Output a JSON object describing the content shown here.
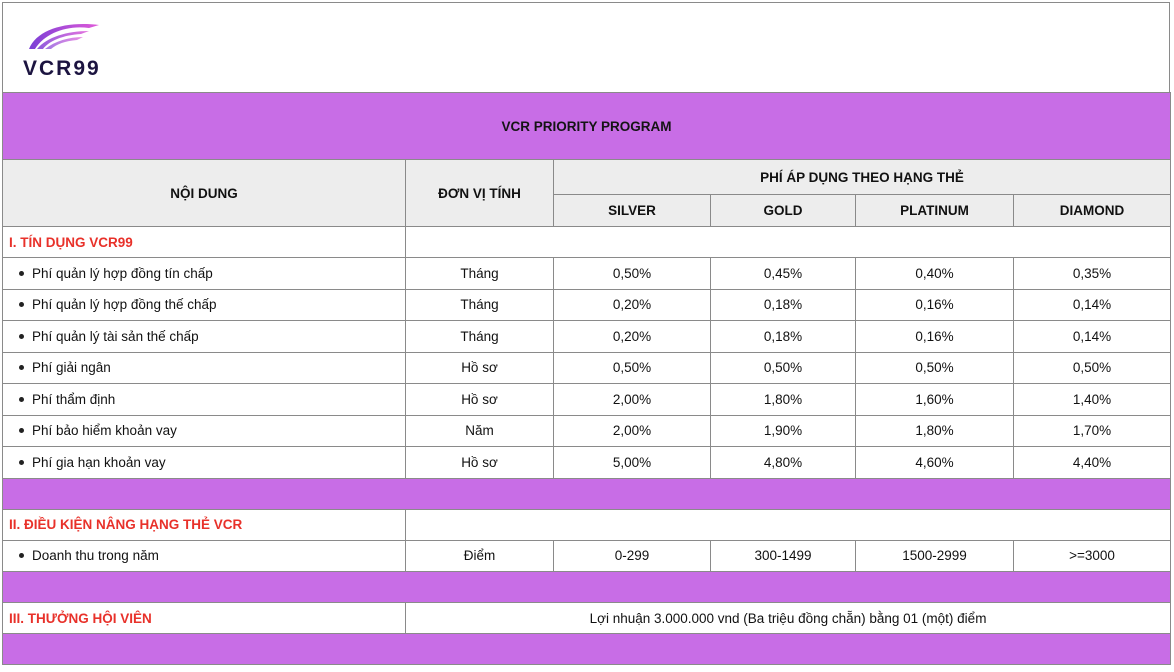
{
  "brand": {
    "name": "VCR99",
    "accent_color": "#c86de6",
    "logo_icon": "swoosh-logo-icon"
  },
  "program_title": "VCR PRIORITY PROGRAM",
  "header": {
    "content": "NỘI DUNG",
    "unit": "ĐƠN VỊ TÍNH",
    "fee_group": "PHÍ ÁP DỤNG THEO HẠNG THẺ",
    "tiers": [
      "SILVER",
      "GOLD",
      "PLATINUM",
      "DIAMOND"
    ]
  },
  "sections": {
    "credit": {
      "title": "I. TÍN DỤNG VCR99",
      "rows": [
        {
          "label": "Phí quản lý hợp đồng tín chấp",
          "unit": "Tháng",
          "values": [
            "0,50%",
            "0,45%",
            "0,40%",
            "0,35%"
          ]
        },
        {
          "label": "Phí quản lý hợp đồng thế chấp",
          "unit": "Tháng",
          "values": [
            "0,20%",
            "0,18%",
            "0,16%",
            "0,14%"
          ]
        },
        {
          "label": "Phí quản lý tài sản thế chấp",
          "unit": "Tháng",
          "values": [
            "0,20%",
            "0,18%",
            "0,16%",
            "0,14%"
          ]
        },
        {
          "label": "Phí giải ngân",
          "unit": "Hồ sơ",
          "values": [
            "0,50%",
            "0,50%",
            "0,50%",
            "0,50%"
          ]
        },
        {
          "label": "Phí thẩm định",
          "unit": "Hồ sơ",
          "values": [
            "2,00%",
            "1,80%",
            "1,60%",
            "1,40%"
          ]
        },
        {
          "label": "Phí bảo hiểm khoản vay",
          "unit": "Năm",
          "values": [
            "2,00%",
            "1,90%",
            "1,80%",
            "1,70%"
          ]
        },
        {
          "label": "Phí gia hạn khoản vay",
          "unit": "Hồ sơ",
          "values": [
            "5,00%",
            "4,80%",
            "4,60%",
            "4,40%"
          ]
        }
      ]
    },
    "upgrade": {
      "title": "II. ĐIỀU KIỆN NÂNG HẠNG THẺ VCR",
      "rows": [
        {
          "label": "Doanh thu trong năm",
          "unit": "Điểm",
          "values": [
            "0-299",
            "300-1499",
            "1500-2999",
            ">=3000"
          ]
        }
      ]
    },
    "reward": {
      "title": "III. THƯỞNG HỘI VIÊN",
      "text": "Lợi nhuận 3.000.000 vnd (Ba triệu đồng chẵn) bằng 01 (một) điểm"
    }
  }
}
